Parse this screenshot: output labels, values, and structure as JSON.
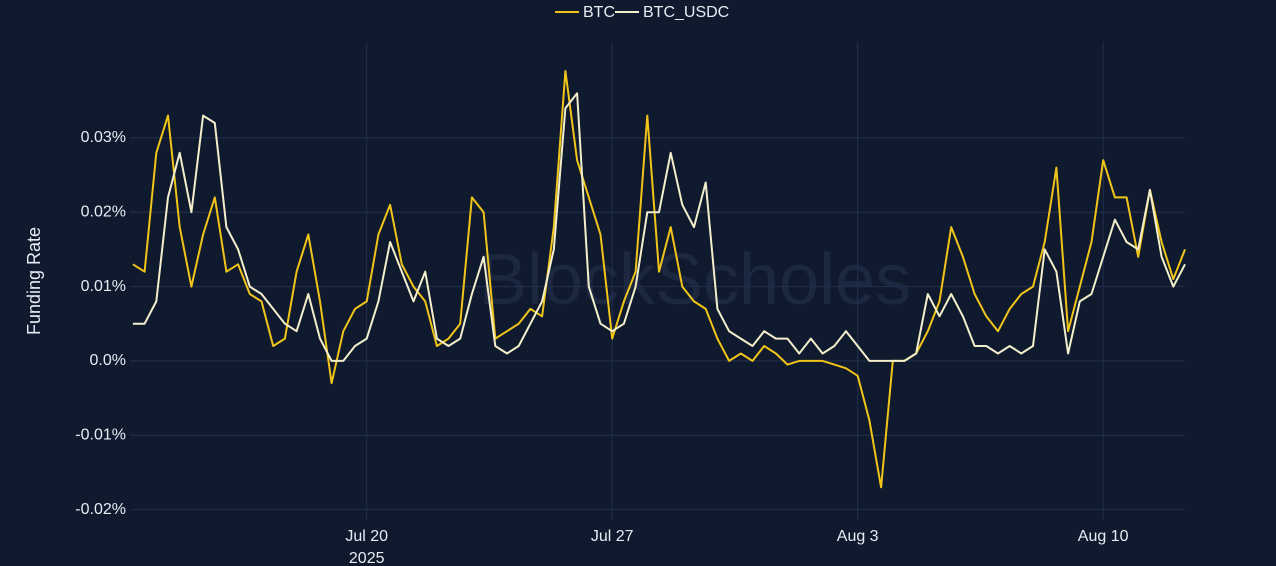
{
  "chart_data": {
    "type": "line",
    "legend": "top",
    "watermark": "BlockScholes",
    "ylabel": "Funding Rate",
    "xtick_year": "2025",
    "grid": true,
    "xlim": [
      "2025-07-13T06:00",
      "2025-08-12T08:00"
    ],
    "ylim": [
      -0.0214,
      0.0429
    ],
    "yticks": [
      {
        "value": -0.02,
        "label": "-0.02%"
      },
      {
        "value": -0.01,
        "label": "-0.01%"
      },
      {
        "value": 0,
        "label": "0.0%"
      },
      {
        "value": 0.01,
        "label": "0.01%"
      },
      {
        "value": 0.02,
        "label": "0.02%"
      },
      {
        "value": 0.03,
        "label": "0.03%"
      }
    ],
    "xticks": [
      {
        "value": "2025-07-20T00:00",
        "label": "Jul 20"
      },
      {
        "value": "2025-07-27T00:00",
        "label": "Jul 27"
      },
      {
        "value": "2025-08-03T00:00",
        "label": "Aug 3"
      },
      {
        "value": "2025-08-10T00:00",
        "label": "Aug 10"
      }
    ],
    "x": [
      "2025-07-13T08:00",
      "2025-07-13T16:00",
      "2025-07-14T00:00",
      "2025-07-14T08:00",
      "2025-07-14T16:00",
      "2025-07-15T00:00",
      "2025-07-15T08:00",
      "2025-07-15T16:00",
      "2025-07-16T00:00",
      "2025-07-16T08:00",
      "2025-07-16T16:00",
      "2025-07-17T00:00",
      "2025-07-17T08:00",
      "2025-07-17T16:00",
      "2025-07-18T00:00",
      "2025-07-18T08:00",
      "2025-07-18T16:00",
      "2025-07-19T00:00",
      "2025-07-19T08:00",
      "2025-07-19T16:00",
      "2025-07-20T00:00",
      "2025-07-20T08:00",
      "2025-07-20T16:00",
      "2025-07-21T00:00",
      "2025-07-21T08:00",
      "2025-07-21T16:00",
      "2025-07-22T00:00",
      "2025-07-22T08:00",
      "2025-07-22T16:00",
      "2025-07-23T00:00",
      "2025-07-23T08:00",
      "2025-07-23T16:00",
      "2025-07-24T00:00",
      "2025-07-24T08:00",
      "2025-07-24T16:00",
      "2025-07-25T00:00",
      "2025-07-25T08:00",
      "2025-07-25T16:00",
      "2025-07-26T00:00",
      "2025-07-26T08:00",
      "2025-07-26T16:00",
      "2025-07-27T00:00",
      "2025-07-27T08:00",
      "2025-07-27T16:00",
      "2025-07-28T00:00",
      "2025-07-28T08:00",
      "2025-07-28T16:00",
      "2025-07-29T00:00",
      "2025-07-29T08:00",
      "2025-07-29T16:00",
      "2025-07-30T00:00",
      "2025-07-30T08:00",
      "2025-07-30T16:00",
      "2025-07-31T00:00",
      "2025-07-31T08:00",
      "2025-07-31T16:00",
      "2025-08-01T00:00",
      "2025-08-01T08:00",
      "2025-08-01T16:00",
      "2025-08-02T00:00",
      "2025-08-02T08:00",
      "2025-08-02T16:00",
      "2025-08-03T00:00",
      "2025-08-03T08:00",
      "2025-08-03T16:00",
      "2025-08-04T00:00",
      "2025-08-04T08:00",
      "2025-08-04T16:00",
      "2025-08-05T00:00",
      "2025-08-05T08:00",
      "2025-08-05T16:00",
      "2025-08-06T00:00",
      "2025-08-06T08:00",
      "2025-08-06T16:00",
      "2025-08-07T00:00",
      "2025-08-07T08:00",
      "2025-08-07T16:00",
      "2025-08-08T00:00",
      "2025-08-08T08:00",
      "2025-08-08T16:00",
      "2025-08-09T00:00",
      "2025-08-09T08:00",
      "2025-08-09T16:00",
      "2025-08-10T00:00",
      "2025-08-10T08:00",
      "2025-08-10T16:00",
      "2025-08-11T00:00",
      "2025-08-11T08:00",
      "2025-08-11T16:00",
      "2025-08-12T00:00",
      "2025-08-12T08:00"
    ],
    "series": [
      {
        "name": "BTC",
        "color": "#f0c419",
        "values": [
          0.013,
          0.012,
          0.028,
          0.033,
          0.018,
          0.01,
          0.017,
          0.022,
          0.012,
          0.013,
          0.009,
          0.008,
          0.002,
          0.003,
          0.012,
          0.017,
          0.008,
          -0.003,
          0.004,
          0.007,
          0.008,
          0.017,
          0.021,
          0.013,
          0.01,
          0.008,
          0.002,
          0.003,
          0.005,
          0.022,
          0.02,
          0.003,
          0.004,
          0.005,
          0.007,
          0.006,
          0.018,
          0.039,
          0.027,
          0.022,
          0.017,
          0.003,
          0.008,
          0.012,
          0.033,
          0.012,
          0.018,
          0.01,
          0.008,
          0.007,
          0.003,
          0.0,
          0.001,
          0.0,
          0.002,
          0.001,
          -0.0005,
          0.0,
          0.0,
          0.0,
          -0.0005,
          -0.001,
          -0.002,
          -0.008,
          -0.017,
          0.0,
          0.0,
          0.001,
          0.004,
          0.008,
          0.018,
          0.014,
          0.009,
          0.006,
          0.004,
          0.007,
          0.009,
          0.01,
          0.016,
          0.026,
          0.004,
          0.01,
          0.016,
          0.027,
          0.022,
          0.022,
          0.014,
          0.023,
          0.016,
          0.011,
          0.015
        ]
      },
      {
        "name": "BTC_USDC",
        "color": "#f3eecb",
        "values": [
          0.005,
          0.005,
          0.008,
          0.022,
          0.028,
          0.02,
          0.033,
          0.032,
          0.018,
          0.015,
          0.01,
          0.009,
          0.007,
          0.005,
          0.004,
          0.009,
          0.003,
          0.0,
          0.0,
          0.002,
          0.003,
          0.008,
          0.016,
          0.012,
          0.008,
          0.012,
          0.003,
          0.002,
          0.003,
          0.009,
          0.014,
          0.002,
          0.001,
          0.002,
          0.005,
          0.008,
          0.015,
          0.034,
          0.036,
          0.01,
          0.005,
          0.004,
          0.005,
          0.01,
          0.02,
          0.02,
          0.028,
          0.021,
          0.018,
          0.024,
          0.007,
          0.004,
          0.003,
          0.002,
          0.004,
          0.003,
          0.003,
          0.001,
          0.003,
          0.001,
          0.002,
          0.004,
          0.002,
          0.0,
          0.0,
          0.0,
          0.0,
          0.001,
          0.009,
          0.006,
          0.009,
          0.006,
          0.002,
          0.002,
          0.001,
          0.002,
          0.001,
          0.002,
          0.015,
          0.012,
          0.001,
          0.008,
          0.009,
          0.014,
          0.019,
          0.016,
          0.015,
          0.023,
          0.014,
          0.01,
          0.013
        ]
      }
    ]
  }
}
